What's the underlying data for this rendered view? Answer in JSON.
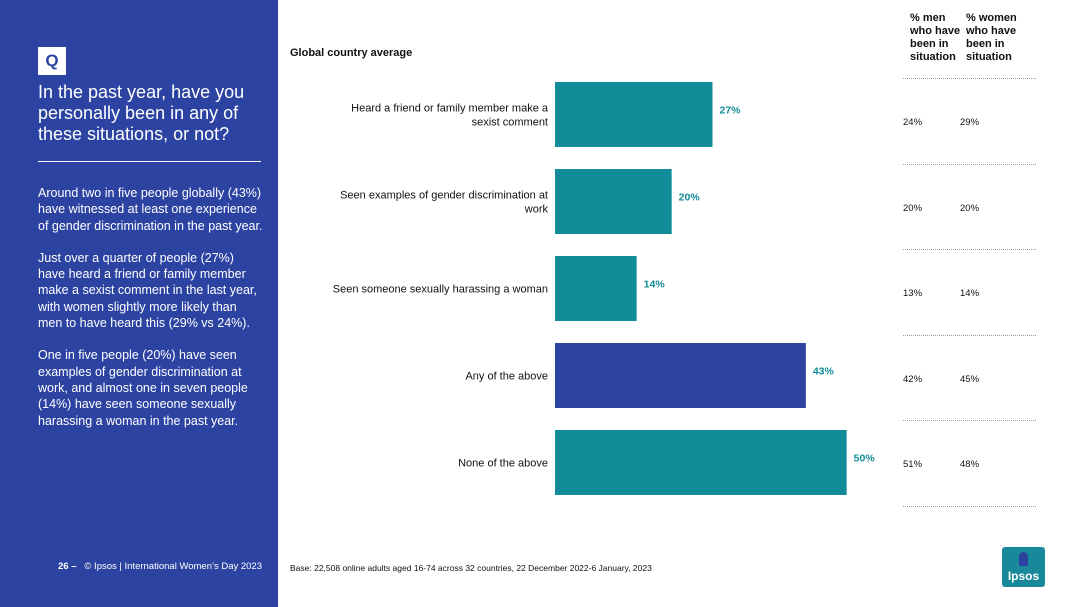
{
  "colors": {
    "sidebar": "#2c43a2",
    "bar": "#128c99",
    "bar_highlight": "#2c43a2",
    "value_label": "#128c99",
    "logo": "#19889a"
  },
  "sidebar": {
    "q_badge": "Q",
    "question": "In the past year, have you personally been in any of these situations, or not?",
    "paragraphs": [
      "Around two in five people globally (43%) have witnessed at least one experience of gender discrimination in the past year.",
      "Just over a quarter of people (27%) have heard a friend or family member make a sexist comment in the last year, with women slightly more likely than men to have heard this (29% vs 24%).",
      "One in five people (20%) have seen examples of gender discrimination at work, and almost one in seven people (14%) have seen someone sexually harassing a woman in the past year."
    ],
    "page_number": "26",
    "page_sep": "–",
    "footer_text": "© Ipsos | International Women’s Day 2023"
  },
  "chart_data": {
    "type": "bar",
    "orientation": "horizontal",
    "title": "Global country average",
    "categories": [
      "Heard a friend or family member make a sexist comment",
      "Seen examples of gender discrimination at work",
      "Seen someone sexually harassing a woman",
      "Any of the above",
      "None of the above"
    ],
    "values": [
      27,
      20,
      14,
      43,
      50
    ],
    "value_labels": [
      "27%",
      "20%",
      "14%",
      "43%",
      "50%"
    ],
    "highlight_index": 3,
    "xlim": [
      0,
      60
    ],
    "grid": false,
    "legend": "none"
  },
  "table": {
    "headers": [
      "% men who have been in situation",
      "% women who have been in situation"
    ],
    "rows": [
      [
        "24%",
        "29%"
      ],
      [
        "20%",
        "20%"
      ],
      [
        "13%",
        "14%"
      ],
      [
        "42%",
        "45%"
      ],
      [
        "51%",
        "48%"
      ]
    ]
  },
  "footnote": "Base: 22,508 online adults aged 16-74 across 32 countries, 22 December 2022-6 January, 2023",
  "logo": {
    "word": "Ipsos",
    "icon": "ipsos-logo-icon"
  }
}
